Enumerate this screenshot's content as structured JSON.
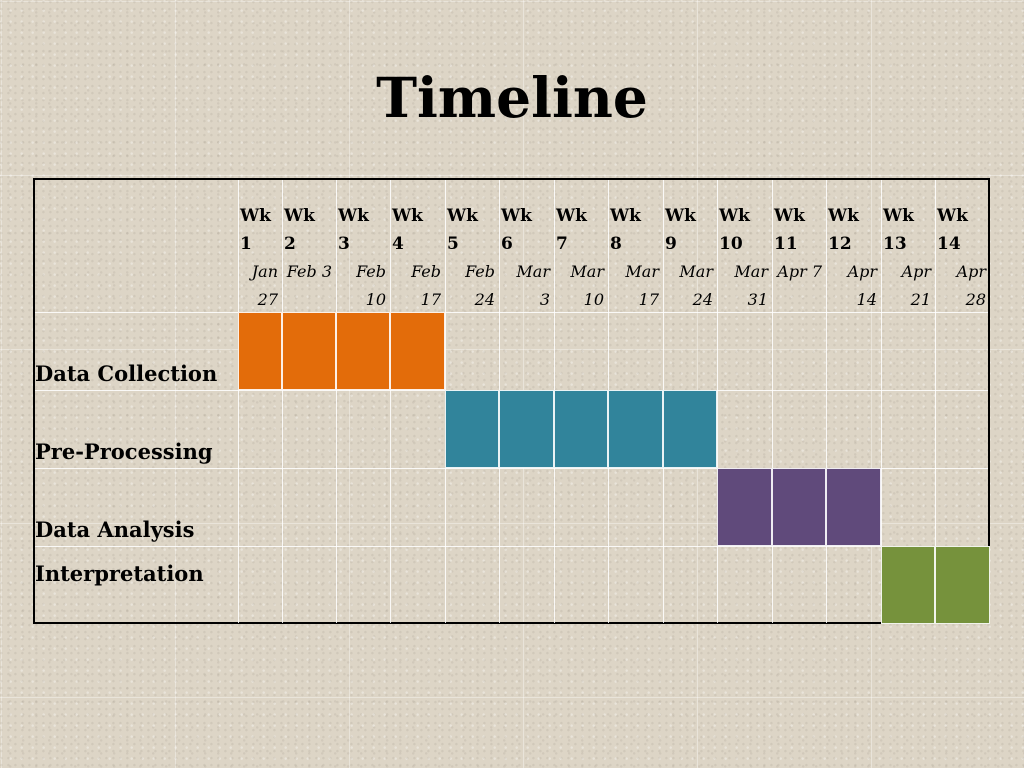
{
  "title": "Timeline",
  "weeks": [
    {
      "label": "Wk\n1",
      "date": "Jan\n27"
    },
    {
      "label": "Wk\n2",
      "date": "Feb\n3"
    },
    {
      "label": "Wk\n3",
      "date": "Feb\n10"
    },
    {
      "label": "Wk\n4",
      "date": "Feb\n17"
    },
    {
      "label": "Wk\n5",
      "date": "Feb\n24"
    },
    {
      "label": "Wk\n6",
      "date": "Mar\n3"
    },
    {
      "label": "Wk\n7",
      "date": "Mar\n10"
    },
    {
      "label": "Wk\n8",
      "date": "Mar\n17"
    },
    {
      "label": "Wk\n9",
      "date": "Mar\n24"
    },
    {
      "label": "Wk\n10",
      "date": "Mar\n31"
    },
    {
      "label": "Wk\n11",
      "date": "Apr\n7"
    },
    {
      "label": "Wk\n12",
      "date": "Apr\n14"
    },
    {
      "label": "Wk\n13",
      "date": "Apr\n21"
    },
    {
      "label": "Wk\n14",
      "date": "Apr\n28"
    }
  ],
  "tasks": [
    {
      "name": "Data Collection",
      "start_week": 1,
      "end_week": 4,
      "color": "#e36c0a"
    },
    {
      "name": "Pre-Processing",
      "start_week": 5,
      "end_week": 9,
      "color": "#31849b"
    },
    {
      "name": "Data Analysis",
      "start_week": 10,
      "end_week": 12,
      "color": "#604a7b"
    },
    {
      "name": "Interpretation",
      "start_week": 13,
      "end_week": 14,
      "color": "#76923c"
    }
  ]
}
